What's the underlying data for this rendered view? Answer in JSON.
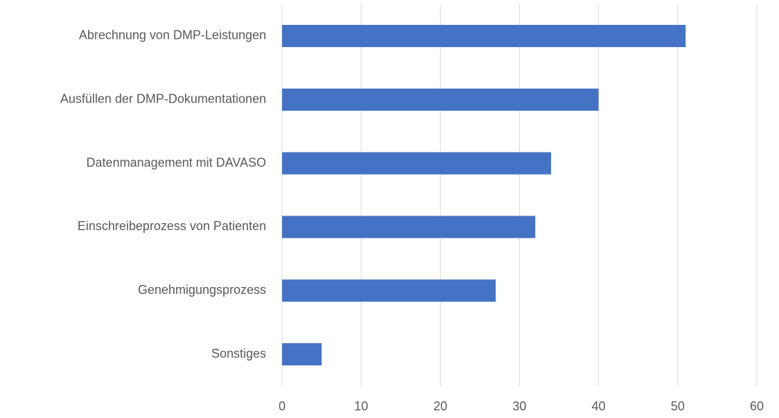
{
  "chart_data": {
    "type": "bar",
    "orientation": "horizontal",
    "categories": [
      "Abrechnung von DMP-Leistungen",
      "Ausfüllen der DMP-Dokumentationen",
      "Datenmanagement mit DAVASO",
      "Einschreibeprozess von Patienten",
      "Genehmigungsprozess",
      "Sonstiges"
    ],
    "values": [
      51,
      40,
      34,
      32,
      27,
      5
    ],
    "color": "#4472c4",
    "xlim": [
      0,
      60
    ],
    "xticks": [
      0,
      10,
      20,
      30,
      40,
      50,
      60
    ],
    "grid": true
  }
}
